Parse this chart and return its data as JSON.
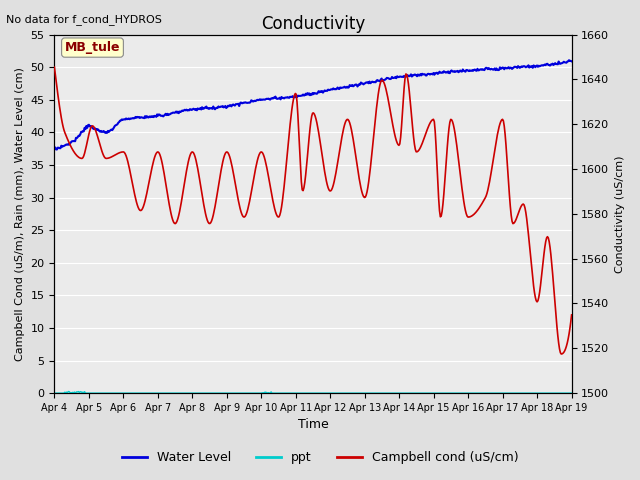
{
  "title": "Conductivity",
  "top_left_text": "No data for f_cond_HYDROS",
  "site_label": "MB_tule",
  "ylabel_left": "Campbell Cond (uS/m), Rain (mm), Water Level (cm)",
  "ylabel_right": "Conductivity (uS/cm)",
  "xlabel": "Time",
  "ylim_left": [
    0,
    55
  ],
  "ylim_right": [
    1500,
    1660
  ],
  "figsize": [
    6.4,
    4.8
  ],
  "dpi": 100,
  "bg_color": "#e0e0e0",
  "plot_bg_color": "#ebebeb",
  "x_tick_labels": [
    "Apr 4",
    "Apr 5",
    "Apr 6",
    "Apr 7",
    "Apr 8",
    "Apr 9",
    "Apr 10",
    "Apr 11",
    "Apr 12",
    "Apr 13",
    "Apr 14",
    "Apr 15",
    "Apr 16",
    "Apr 17",
    "Apr 18",
    "Apr 19"
  ],
  "water_level_color": "#0000dd",
  "ppt_color": "#00cccc",
  "campbell_color": "#cc0000",
  "legend_labels": [
    "Water Level",
    "ppt",
    "Campbell cond (uS/cm)"
  ],
  "grid_color": "#ffffff",
  "title_fontsize": 12,
  "label_fontsize": 8,
  "tick_fontsize": 8
}
